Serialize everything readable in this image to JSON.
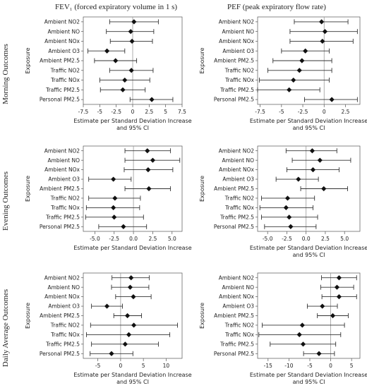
{
  "layout_titles": {
    "col_left": "FEV₁ (forced expiratory volume in 1 s)",
    "col_right": "PEF (peak expiratory flow rate)",
    "row_1": "Morning Outcomes",
    "row_2": "Evening Outcomes",
    "row_3": "Daily Average Outcomes"
  },
  "colors": {
    "marker": "#111111",
    "line": "#333333",
    "reference": "#999999"
  },
  "chart_data": [
    {
      "type": "scatter",
      "id": "morning-fev1",
      "xlabel": "Estimate per Standard Deviation Increase\nand 95% CI",
      "ylabel": "Exposure",
      "xlim": [
        -7.5,
        7.5
      ],
      "xticks": [
        -7.5,
        -5,
        -2.5,
        0,
        2.5,
        5,
        7.5
      ],
      "xtick_labels": [
        "-7.5",
        "-5",
        "-2.5",
        "0",
        "2.5",
        "5",
        "7.5"
      ],
      "categories": [
        "Ambient NO2",
        "Ambient NO",
        "Ambient NOx",
        "Ambient O3",
        "Ambient PM2.5",
        "Traffic NO2",
        "Traffic NOx",
        "Traffic PM2.5",
        "Personal PM2.5"
      ],
      "estimate": [
        0.2,
        -0.3,
        -0.1,
        -3.9,
        -2.6,
        -0.2,
        -1.2,
        -1.5,
        2.9
      ],
      "lower": [
        -3.5,
        -4.0,
        -3.4,
        -6.8,
        -5.8,
        -3.5,
        -5.0,
        -4.9,
        -0.4
      ],
      "upper": [
        3.9,
        3.2,
        3.0,
        -1.2,
        0.6,
        3.1,
        2.6,
        1.9,
        6.1
      ]
    },
    {
      "type": "scatter",
      "id": "morning-pef",
      "xlabel": "Estimate per Standard Deviation Increase\nand 95% CI",
      "ylabel": "Exposure",
      "xlim": [
        -7.8,
        4.2
      ],
      "xticks": [
        -7.5,
        -5,
        -2.5,
        0,
        2.5
      ],
      "xtick_labels": [
        "-7.5",
        "-5",
        "-2.5",
        "0",
        "2.5"
      ],
      "categories": [
        "Ambient NO2",
        "Ambient NO",
        "Ambient NOx",
        "Ambient O3",
        "Ambient PM2.5",
        "Traffic NO2",
        "Traffic NOx",
        "Traffic PM2.5",
        "Personal PM2.5"
      ],
      "estimate": [
        -0.3,
        0.1,
        -0.2,
        -2.2,
        -2.6,
        -2.9,
        -3.6,
        -4.1,
        0.9
      ],
      "lower": [
        -3.5,
        -4.0,
        -4.0,
        -5.0,
        -6.0,
        -6.6,
        -7.6,
        -7.8,
        -2.3
      ],
      "upper": [
        2.8,
        3.9,
        3.4,
        0.6,
        0.9,
        0.9,
        0.6,
        -0.5,
        3.9
      ]
    },
    {
      "type": "scatter",
      "id": "evening-fev1",
      "xlabel": "Estimate per Standard Deviation Increase",
      "ylabel": "Exposure",
      "xlim": [
        -6.5,
        6.3
      ],
      "xticks": [
        -5,
        -2.5,
        0,
        2.5,
        5
      ],
      "xtick_labels": [
        "-5.0",
        "-2.5",
        "0.0",
        "2.5",
        "5.0"
      ],
      "categories": [
        "Ambient NO2",
        "Ambient NO",
        "Ambient NOx",
        "Ambient O3",
        "Ambient PM2.5",
        "Traffic NO2",
        "Traffic NOx",
        "Traffic PM2.5",
        "Personal PM2.5"
      ],
      "estimate": [
        1.8,
        2.5,
        1.9,
        -2.6,
        2.0,
        -2.4,
        -2.6,
        -2.5,
        -1.3
      ],
      "lower": [
        -1.1,
        -1.1,
        -1.2,
        -5.8,
        -1.1,
        -5.8,
        -6.1,
        -6.2,
        -4.5
      ],
      "upper": [
        4.8,
        6.0,
        5.1,
        -0.3,
        4.8,
        0.9,
        0.8,
        1.3,
        1.7
      ]
    },
    {
      "type": "scatter",
      "id": "evening-pef",
      "xlabel": "Estimate per Standard Deviation Increase\nand 95% CI",
      "ylabel": "Exposure",
      "xlim": [
        -6.3,
        7.0
      ],
      "xticks": [
        -5,
        -2.5,
        0,
        2.5,
        5
      ],
      "xtick_labels": [
        "-5.0",
        "-2.5",
        "0.0",
        "2.5",
        "5.0"
      ],
      "categories": [
        "Ambient NO2",
        "Ambient NO",
        "Ambient NOx",
        "Ambient O3",
        "Ambient PM2.5",
        "Traffic NO2",
        "Traffic NOx",
        "Traffic PM2.5",
        "Personal PM2.5"
      ],
      "estimate": [
        0.8,
        1.8,
        0.9,
        -1.0,
        2.3,
        -2.4,
        -2.6,
        -2.2,
        -2.0
      ],
      "lower": [
        -2.6,
        -1.8,
        -2.5,
        -3.9,
        -0.7,
        -5.8,
        -6.0,
        -5.8,
        -5.4
      ],
      "upper": [
        4.0,
        5.8,
        4.3,
        1.6,
        5.4,
        1.1,
        0.9,
        1.5,
        1.3
      ]
    },
    {
      "type": "scatter",
      "id": "daily-fev1",
      "xlabel": "Estimate per Standard Deviation Increase\nand 95% CI",
      "ylabel": "Exposure",
      "xlim": [
        -8.2,
        13.5
      ],
      "xticks": [
        -5,
        0,
        5,
        10
      ],
      "xtick_labels": [
        "-5",
        "0",
        "5",
        "10"
      ],
      "categories": [
        "Ambient NO2",
        "Ambient NO",
        "Ambient NOx",
        "Ambient O3",
        "Ambient PM2.5",
        "Traffic NO2",
        "Traffic NOx",
        "Traffic PM2.5",
        "Personal PM2.5"
      ],
      "estimate": [
        2.3,
        2.1,
        2.8,
        -3.0,
        1.5,
        2.9,
        1.8,
        1.0,
        -2.0
      ],
      "lower": [
        -1.9,
        -2.0,
        -1.1,
        -6.4,
        -1.5,
        -6.6,
        -7.5,
        -6.4,
        -6.7
      ],
      "upper": [
        6.3,
        6.2,
        6.7,
        0.4,
        4.6,
        12.5,
        10.8,
        8.3,
        2.7
      ]
    },
    {
      "type": "scatter",
      "id": "daily-pef",
      "xlabel": "Estimate per Standard Deviation Increase\nand 95% CI",
      "ylabel": "Exposure",
      "xlim": [
        -17.5,
        7.0
      ],
      "xticks": [
        -15,
        -10,
        -5,
        0,
        5
      ],
      "xtick_labels": [
        "-15",
        "-10",
        "-5",
        "0",
        "5"
      ],
      "categories": [
        "Ambient NO2",
        "Ambient NO",
        "Ambient NOx",
        "Ambient O3",
        "Ambient PM2.5",
        "Traffic NO2",
        "Traffic NOx",
        "Traffic PM2.5",
        "Personal PM2.5"
      ],
      "estimate": [
        2.0,
        1.5,
        2.0,
        -2.0,
        0.5,
        -6.8,
        -7.5,
        -6.6,
        -2.8
      ],
      "lower": [
        -2.2,
        -2.4,
        -2.1,
        -5.6,
        -3.2,
        -16.4,
        -17.2,
        -14.5,
        -6.5
      ],
      "upper": [
        6.2,
        5.5,
        6.2,
        1.6,
        4.2,
        3.3,
        2.4,
        1.2,
        0.9
      ]
    }
  ]
}
